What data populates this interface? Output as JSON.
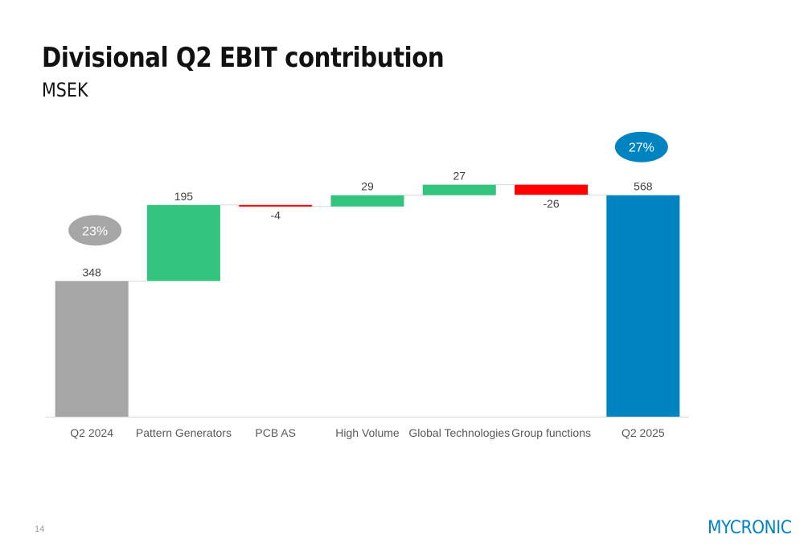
{
  "slide": {
    "title": "Divisional Q2 EBIT contribution",
    "subtitle": "MSEK",
    "page_number": "14",
    "logo_text": "MYCRONIC"
  },
  "colors": {
    "start": "#a6a6a6",
    "end": "#0083c1",
    "increase": "#33c47d",
    "decrease": "#ff0000",
    "connector": "#d9d9d9"
  },
  "chart_data": {
    "type": "waterfall",
    "title": "Divisional Q2 EBIT contribution",
    "unit": "MSEK",
    "categories": [
      "Q2 2024",
      "Pattern Generators",
      "PCB AS",
      "High Volume",
      "Global Technologies",
      "Group functions",
      "Q2 2025"
    ],
    "values": [
      348,
      195,
      -4,
      29,
      27,
      -26,
      568
    ],
    "kinds": [
      "total",
      "delta",
      "delta",
      "delta",
      "delta",
      "delta",
      "total"
    ],
    "labels": [
      "348",
      "195",
      "-4",
      "29",
      "27",
      "-26",
      "568"
    ],
    "ylim": [
      0,
      620
    ],
    "grid": false,
    "annotations": [
      {
        "category": "Q2 2024",
        "text": "23%",
        "color": "#a6a6a6"
      },
      {
        "category": "Q2 2025",
        "text": "27%",
        "color": "#0083c1"
      }
    ]
  }
}
